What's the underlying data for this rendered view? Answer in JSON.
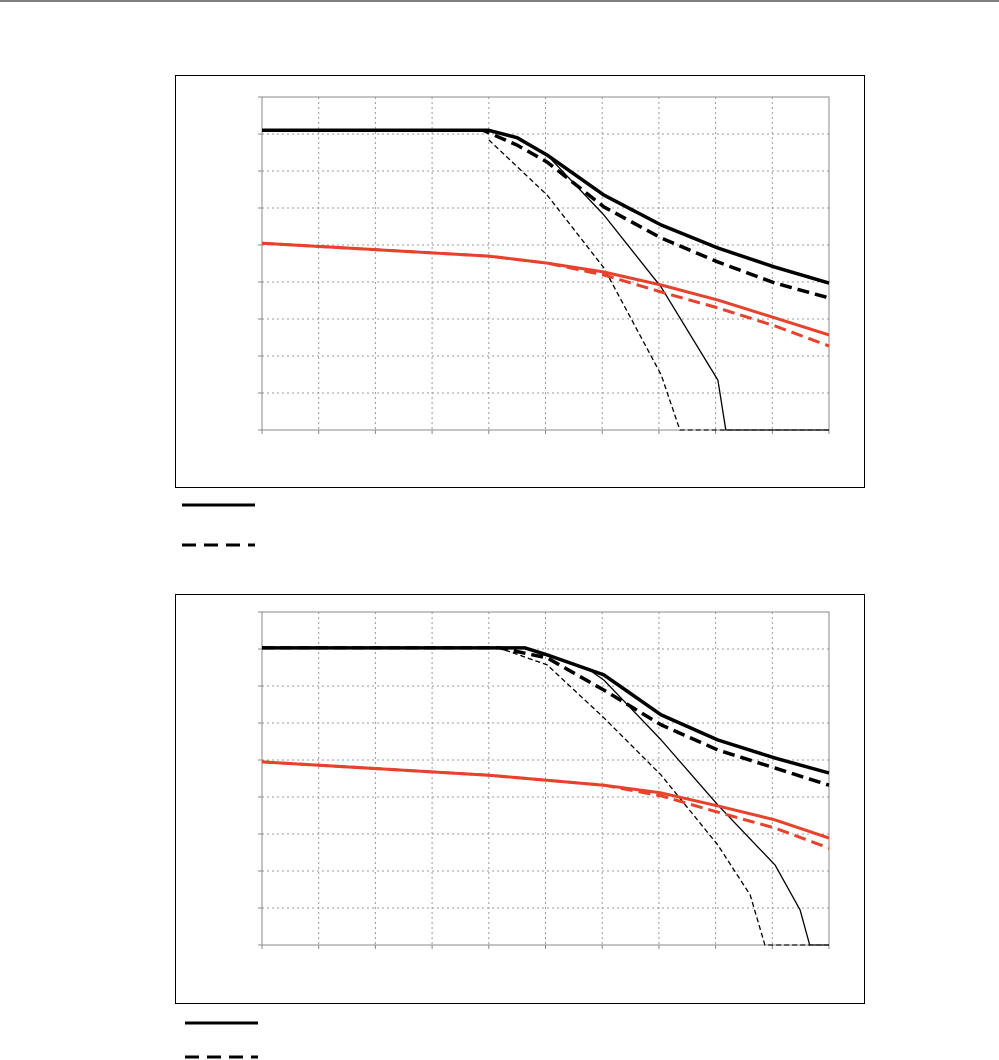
{
  "chart_data": [
    {
      "type": "line",
      "xlim": [
        0,
        10
      ],
      "ylim": [
        0,
        9
      ],
      "xticks": [
        0,
        1,
        2,
        3,
        4,
        5,
        6,
        7,
        8,
        9,
        10
      ],
      "yticks": [
        0,
        1,
        2,
        3,
        4,
        5,
        6,
        7,
        8,
        9
      ],
      "grid": true,
      "series": [
        {
          "color": "#000000",
          "width": 3.5,
          "dash": false,
          "x": [
            0,
            4.0,
            4.5,
            5.03,
            6.03,
            7.04,
            8.04,
            9.05,
            10
          ],
          "values": [
            8.1,
            8.1,
            7.9,
            7.43,
            6.35,
            5.54,
            4.92,
            4.4,
            3.97
          ]
        },
        {
          "color": "#000000",
          "width": 3.5,
          "dash": true,
          "x": [
            0,
            3.9,
            4.5,
            5.03,
            6.03,
            7.04,
            8.04,
            9.05,
            10
          ],
          "values": [
            8.1,
            8.1,
            7.7,
            7.24,
            6.03,
            5.19,
            4.54,
            3.97,
            3.57
          ]
        },
        {
          "color": "#000000",
          "width": 1.3,
          "dash": false,
          "x": [
            5.03,
            6.03,
            7.04,
            8.04,
            8.18,
            10
          ],
          "values": [
            7.43,
            5.81,
            3.86,
            1.35,
            0,
            0
          ]
        },
        {
          "color": "#000000",
          "width": 1.3,
          "dash": true,
          "x": [
            4.0,
            5.03,
            6.03,
            7.04,
            7.37,
            10
          ],
          "values": [
            7.84,
            6.35,
            4.38,
            1.49,
            0,
            0
          ]
        },
        {
          "color": "#e8412c",
          "width": 3,
          "dash": false,
          "x": [
            0,
            4.0,
            5.03,
            6.03,
            7.04,
            8.04,
            9.05,
            10
          ],
          "values": [
            5.05,
            4.7,
            4.51,
            4.27,
            3.92,
            3.51,
            3.03,
            2.57
          ]
        },
        {
          "color": "#e8412c",
          "width": 3,
          "dash": true,
          "x": [
            0,
            4.0,
            5.03,
            6.03,
            7.04,
            8.04,
            9.05,
            10
          ],
          "values": [
            5.05,
            4.7,
            4.51,
            4.19,
            3.73,
            3.3,
            2.81,
            2.27
          ]
        }
      ]
    },
    {
      "type": "line",
      "xlim": [
        0,
        10
      ],
      "ylim": [
        0,
        9
      ],
      "xticks": [
        0,
        1,
        2,
        3,
        4,
        5,
        6,
        7,
        8,
        9,
        10
      ],
      "yticks": [
        0,
        1,
        2,
        3,
        4,
        5,
        6,
        7,
        8,
        9
      ],
      "grid": true,
      "series": [
        {
          "color": "#000000",
          "width": 3.5,
          "dash": false,
          "x": [
            0,
            4.64,
            5.03,
            6.03,
            7.04,
            8.04,
            9.05,
            10
          ],
          "values": [
            8.03,
            8.03,
            7.84,
            7.3,
            6.22,
            5.54,
            5.05,
            4.65
          ]
        },
        {
          "color": "#000000",
          "width": 3.5,
          "dash": true,
          "x": [
            0,
            4.2,
            5.03,
            6.03,
            7.04,
            8.04,
            9.05,
            10
          ],
          "values": [
            8.03,
            8.03,
            7.76,
            6.89,
            5.95,
            5.27,
            4.78,
            4.32
          ]
        },
        {
          "color": "#000000",
          "width": 1.3,
          "dash": false,
          "x": [
            5.78,
            6.03,
            7.04,
            8.04,
            9.05,
            9.49,
            9.66,
            10
          ],
          "values": [
            7.43,
            7.16,
            5.54,
            3.78,
            2.16,
            0.95,
            0,
            0
          ]
        },
        {
          "color": "#000000",
          "width": 1.3,
          "dash": true,
          "x": [
            4.29,
            5.03,
            6.03,
            7.04,
            8.04,
            8.61,
            8.87,
            10
          ],
          "values": [
            7.97,
            7.57,
            6.14,
            4.59,
            2.7,
            1.35,
            0,
            0
          ]
        },
        {
          "color": "#e8412c",
          "width": 3,
          "dash": false,
          "x": [
            0,
            4.0,
            6.03,
            7.04,
            8.04,
            9.05,
            10
          ],
          "values": [
            4.95,
            4.59,
            4.32,
            4.11,
            3.76,
            3.38,
            2.89
          ]
        },
        {
          "color": "#e8412c",
          "width": 3,
          "dash": true,
          "x": [
            0,
            4.0,
            6.03,
            7.04,
            8.04,
            9.05,
            10
          ],
          "values": [
            4.95,
            4.59,
            4.32,
            4.03,
            3.59,
            3.16,
            2.62
          ]
        }
      ]
    }
  ]
}
